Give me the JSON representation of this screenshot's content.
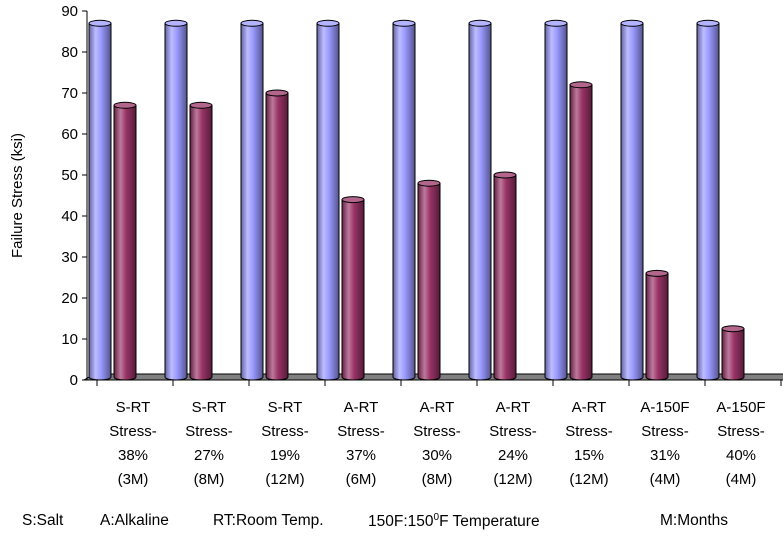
{
  "chart_data": {
    "type": "bar",
    "style": "3d-cylinder",
    "ylabel": "Failure Stress (ksi)",
    "ylim": [
      0,
      90
    ],
    "yticks": [
      0,
      10,
      20,
      30,
      40,
      50,
      60,
      70,
      80,
      90
    ],
    "grid": false,
    "categories": [
      [
        "S-RT",
        "Stress-",
        "38%",
        "(3M)"
      ],
      [
        "S-RT",
        "Stress-",
        "27%",
        "(8M)"
      ],
      [
        "S-RT",
        "Stress-",
        "19%",
        "(12M)"
      ],
      [
        "A-RT",
        "Stress-",
        "37%",
        "(6M)"
      ],
      [
        "A-RT",
        "Stress-",
        "30%",
        "(8M)"
      ],
      [
        "A-RT",
        "Stress-",
        "24%",
        "(12M)"
      ],
      [
        "A-RT",
        "Stress-",
        "15%",
        "(12M)"
      ],
      [
        "A-150F",
        "Stress-",
        "31%",
        "(4M)"
      ],
      [
        "A-150F",
        "Stress-",
        "40%",
        "(4M)"
      ]
    ],
    "series": [
      {
        "color": "#9999ff",
        "values": [
          87,
          87,
          87,
          87,
          87,
          87,
          87,
          87,
          87
        ]
      },
      {
        "color": "#993366",
        "values": [
          67,
          67,
          70,
          44,
          48,
          50,
          72,
          26,
          12.5
        ]
      }
    ]
  },
  "footnote": {
    "salt": "S:Salt",
    "alkaline": "A:Alkaline",
    "room_temp": "RT:Room Temp.",
    "temp_prefix": "150F:150",
    "temp_sup": "0",
    "temp_suffix": "F Temperature",
    "months": "M:Months"
  }
}
